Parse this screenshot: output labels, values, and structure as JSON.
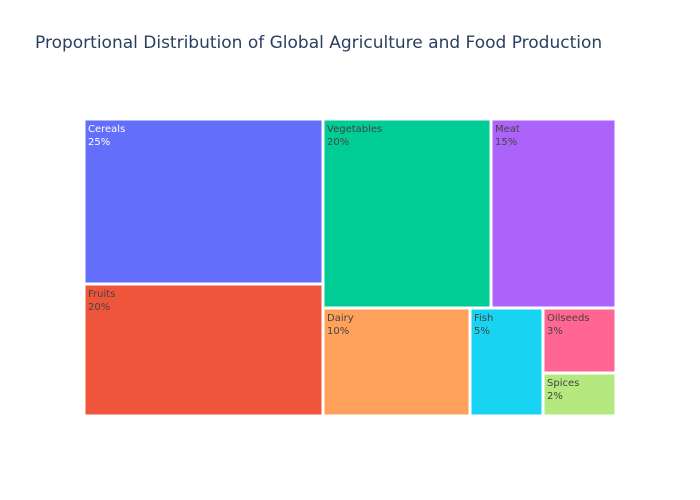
{
  "chart_data": {
    "type": "treemap",
    "title": "Proportional Distribution of Global Agriculture and Food Production",
    "categories": [
      "Cereals",
      "Vegetables",
      "Meat",
      "Fruits",
      "Dairy",
      "Fish",
      "Oilseeds",
      "Spices"
    ],
    "values": [
      25,
      20,
      15,
      20,
      10,
      5,
      3,
      2
    ],
    "value_labels": [
      "25%",
      "20%",
      "15%",
      "20%",
      "10%",
      "5%",
      "3%",
      "2%"
    ],
    "colors": [
      "#636efa",
      "#00cc96",
      "#ab63fa",
      "#ef553b",
      "#ffa15a",
      "#19d3f3",
      "#ff6692",
      "#b6e880"
    ],
    "text_colors": [
      "#ffffff",
      "#444444",
      "#444444",
      "#444444",
      "#444444",
      "#444444",
      "#444444",
      "#444444"
    ]
  }
}
